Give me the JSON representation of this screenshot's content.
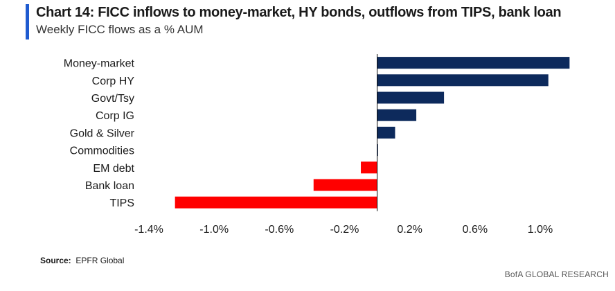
{
  "header": {
    "title": "Chart 14: FICC inflows to money-market, HY bonds, outflows from TIPS, bank loan",
    "subtitle": "Weekly FICC flows as a % AUM"
  },
  "footer": {
    "source_label": "Source:",
    "source_value": "EPFR Global",
    "credit": "BofA GLOBAL RESEARCH"
  },
  "colors": {
    "positive": "#0d2a5c",
    "negative": "#ff0000",
    "accent": "#1f5bd0"
  },
  "chart_data": {
    "type": "bar",
    "orientation": "horizontal",
    "categories": [
      "Money-market",
      "Corp HY",
      "Govt/Tsy",
      "Corp IG",
      "Gold & Silver",
      "Commodities",
      "EM debt",
      "Bank loan",
      "TIPS"
    ],
    "values": [
      1.18,
      1.05,
      0.41,
      0.24,
      0.11,
      0.005,
      -0.1,
      -0.39,
      -1.24
    ],
    "xlim": [
      -1.4,
      1.2
    ],
    "xticks": [
      -1.4,
      -1.0,
      -0.6,
      -0.2,
      0.2,
      0.6,
      1.0
    ],
    "xtick_labels": [
      "-1.4%",
      "-1.0%",
      "-0.6%",
      "-0.2%",
      "0.2%",
      "0.6%",
      "1.0%"
    ],
    "grid": false,
    "legend": "none"
  }
}
